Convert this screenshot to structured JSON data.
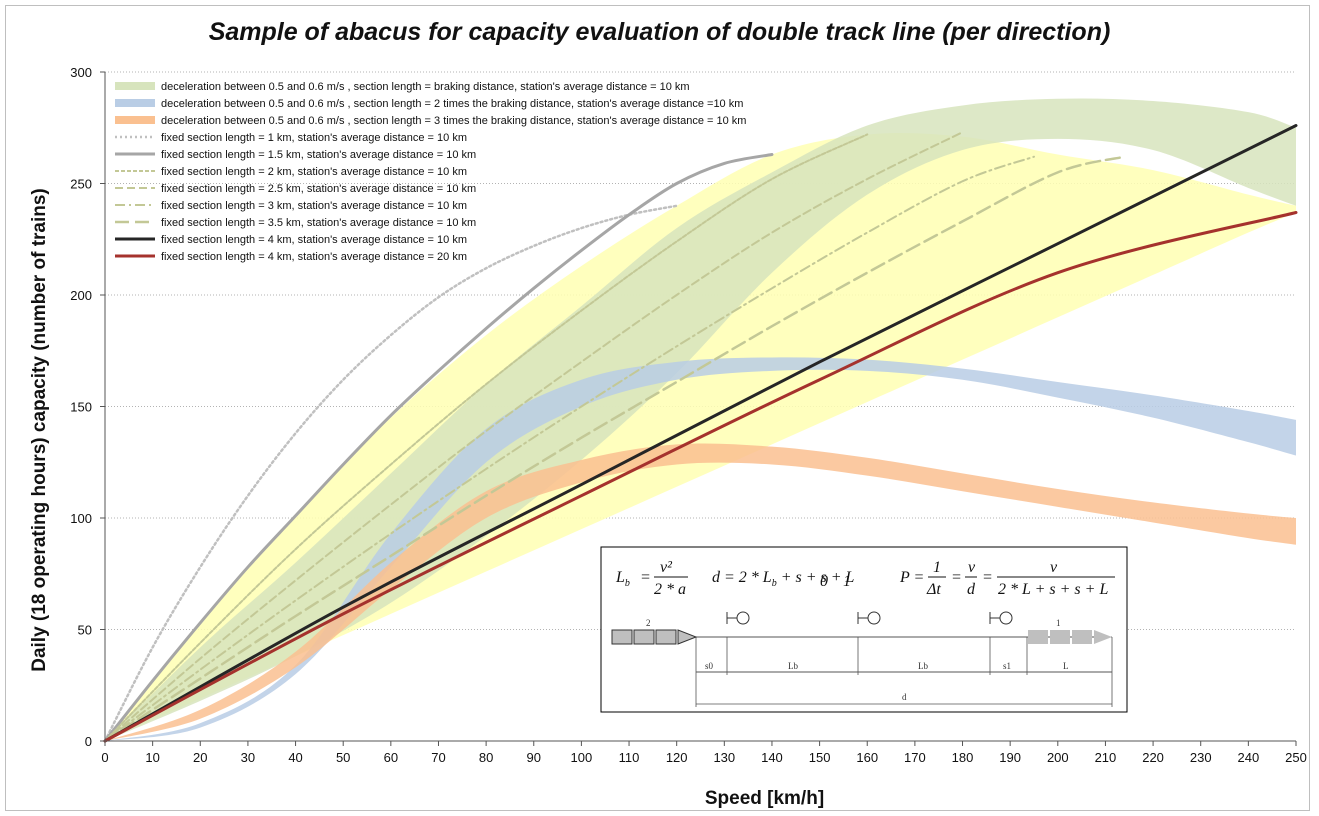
{
  "chart_data": {
    "type": "area",
    "title": "Sample of abacus for capacity evaluation of double track line (per direction)",
    "xlabel": "Speed [km/h]",
    "ylabel": "Daily (18 operating hours) capacity (number of trains)",
    "xlim": [
      0,
      250
    ],
    "ylim": [
      0,
      300
    ],
    "xticks": [
      0,
      10,
      20,
      30,
      40,
      50,
      60,
      70,
      80,
      90,
      100,
      110,
      120,
      130,
      140,
      150,
      160,
      170,
      180,
      190,
      200,
      210,
      220,
      230,
      240,
      250
    ],
    "yticks": [
      0,
      50,
      100,
      150,
      200,
      250,
      300
    ],
    "grid": "horizontal dotted",
    "legend_position": "top-left",
    "bands": [
      {
        "name": "deceleration between 0.5 and 0.6 m/s , section length = braking distance, station's average distance = 10 km",
        "color": "#d7e4bd",
        "x": [
          0,
          20,
          40,
          60,
          80,
          100,
          120,
          140,
          160,
          180,
          200,
          220,
          240,
          250
        ],
        "upper": [
          0,
          42,
          80,
          120,
          160,
          195,
          230,
          255,
          276,
          285,
          288,
          287,
          282,
          275
        ],
        "lower": [
          0,
          18,
          38,
          62,
          92,
          126,
          165,
          210,
          245,
          265,
          270,
          265,
          248,
          240
        ]
      },
      {
        "name": "deceleration between 0.5 and 0.6 m/s , section length = 2 times the braking distance, station's average distance =10 km",
        "color": "#b9cde5",
        "x": [
          0,
          20,
          40,
          60,
          80,
          100,
          120,
          140,
          160,
          180,
          200,
          220,
          240,
          250
        ],
        "upper": [
          0,
          8,
          34,
          93,
          140,
          162,
          170,
          172,
          171,
          167,
          161,
          155,
          148,
          144
        ],
        "lower": [
          0,
          6,
          30,
          78,
          125,
          150,
          162,
          166,
          166,
          162,
          154,
          145,
          134,
          128
        ]
      },
      {
        "name": "deceleration between 0.5 and 0.6 m/s , section length = 3 times the braking distance, station's average distance = 10 km",
        "color": "#fac090",
        "x": [
          0,
          20,
          40,
          60,
          80,
          100,
          120,
          140,
          160,
          180,
          200,
          220,
          240,
          250
        ],
        "upper": [
          0,
          14,
          40,
          80,
          112,
          126,
          133,
          132,
          127,
          120,
          113,
          107,
          102,
          100
        ],
        "lower": [
          0,
          10,
          33,
          68,
          100,
          116,
          124,
          124,
          119,
          112,
          105,
          98,
          91,
          88
        ]
      }
    ],
    "envelope": {
      "name": "",
      "color": "#ffffb3",
      "x": [
        0,
        20,
        40,
        60,
        80,
        100,
        120,
        140,
        160,
        180,
        200,
        220,
        240,
        250
      ],
      "upper": [
        0,
        53,
        101,
        145,
        182,
        213,
        240,
        263,
        272,
        271,
        263,
        256,
        245,
        240
      ],
      "lower": [
        0,
        19,
        38,
        57,
        76,
        95,
        114,
        133,
        152,
        171,
        190,
        209,
        228,
        237
      ]
    },
    "series": [
      {
        "name": "fixed section length = 1 km, station's average distance = 10 km",
        "color": "#c0c0c0",
        "dash": "2,3",
        "width": 2.5,
        "x": [
          0,
          10,
          20,
          30,
          40,
          50,
          60,
          70,
          80,
          90,
          100,
          110,
          120
        ],
        "y": [
          0,
          42,
          78,
          110,
          138,
          162,
          182,
          199,
          212,
          222,
          230,
          236,
          240
        ]
      },
      {
        "name": "fixed section length = 1.5 km, station's average distance = 10 km",
        "color": "#a6a6a6",
        "dash": "",
        "width": 3,
        "x": [
          0,
          10,
          20,
          30,
          40,
          50,
          60,
          70,
          80,
          90,
          100,
          110,
          120,
          130,
          140
        ],
        "y": [
          0,
          27,
          53,
          78,
          101,
          124,
          146,
          166,
          185,
          203,
          220,
          236,
          250,
          259,
          263
        ]
      },
      {
        "name": "fixed section length = 2 km, station's average distance = 10 km",
        "color": "#c3c896",
        "dash": "4,2",
        "width": 2,
        "x": [
          0,
          20,
          40,
          60,
          80,
          100,
          120,
          140,
          160
        ],
        "y": [
          0,
          44,
          86,
          124,
          160,
          193,
          224,
          252,
          272
        ]
      },
      {
        "name": "fixed section length = 2.5 km, station's average distance = 10 km",
        "color": "#c3c896",
        "dash": "8,4",
        "width": 2,
        "x": [
          0,
          20,
          40,
          60,
          80,
          100,
          120,
          140,
          160,
          180
        ],
        "y": [
          0,
          37,
          72,
          106,
          139,
          170,
          200,
          228,
          252,
          273
        ]
      },
      {
        "name": "fixed section length = 3 km, station's average distance = 10 km",
        "color": "#c3c896",
        "dash": "10,4,2,4",
        "width": 2,
        "x": [
          0,
          20,
          40,
          60,
          80,
          100,
          120,
          140,
          160,
          180,
          195
        ],
        "y": [
          0,
          32,
          63,
          93,
          122,
          150,
          177,
          203,
          228,
          251,
          262
        ]
      },
      {
        "name": "fixed section length = 3.5 km, station's average distance = 10 km",
        "color": "#c3c896",
        "dash": "14,6",
        "width": 2.5,
        "x": [
          0,
          20,
          40,
          60,
          80,
          100,
          120,
          140,
          160,
          180,
          200,
          214
        ],
        "y": [
          0,
          28,
          56,
          83,
          110,
          136,
          161,
          186,
          210,
          233,
          255,
          262
        ]
      },
      {
        "name": "fixed section length = 4 km, station's average distance = 10 km",
        "color": "#262626",
        "dash": "",
        "width": 3,
        "x": [
          0,
          50,
          100,
          150,
          200,
          250
        ],
        "y": [
          0,
          60,
          115,
          170,
          223,
          276
        ]
      },
      {
        "name": "fixed section length = 4 km, station's average distance = 20 km",
        "color": "#a5322d",
        "dash": "",
        "width": 3,
        "x": [
          0,
          50,
          100,
          150,
          200,
          250
        ],
        "y": [
          0,
          57,
          110,
          162,
          210,
          237
        ]
      }
    ]
  },
  "inset": {
    "eq_lb": "L",
    "eq_lb_sub": "b",
    "eq_lb_rhs_num": "v²",
    "eq_lb_rhs_den": "2 * a",
    "eq_d": "d = 2 * L",
    "eq_d_rest": " + s  + s  + L",
    "eq_p": "P =",
    "eq_p_num1": "1",
    "eq_p_den1": "Δt",
    "eq_p_num2": "v",
    "eq_p_den2": "d",
    "eq_p_num3": "v",
    "eq_p_den3": "2 * L  + s  + s  + L",
    "train2_label": "2",
    "train1_label": "1",
    "dim_s0": "s0",
    "dim_lb1": "Lb",
    "dim_lb2": "Lb",
    "dim_s1": "s1",
    "dim_l": "L",
    "dim_d": "d"
  }
}
